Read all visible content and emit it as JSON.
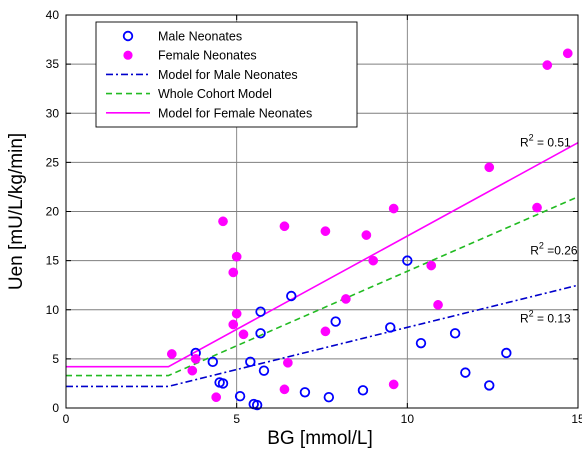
{
  "chart_data": {
    "type": "scatter",
    "xlabel": "BG [mmol/L]",
    "ylabel": "Uen [mU/L/kg/min]",
    "xlim": [
      0,
      15
    ],
    "ylim": [
      0,
      40
    ],
    "x_ticks": [
      "0",
      "5",
      "10",
      "15"
    ],
    "y_ticks": [
      "0",
      "5",
      "10",
      "15",
      "20",
      "25",
      "30",
      "35",
      "40"
    ],
    "grid": true,
    "legend_position": "top-left",
    "series": [
      {
        "name": "Male Neonates",
        "kind": "points",
        "marker": "open-circle",
        "color": "#0000ff",
        "points": [
          [
            3.8,
            5.6
          ],
          [
            4.3,
            4.7
          ],
          [
            4.5,
            2.6
          ],
          [
            4.6,
            2.5
          ],
          [
            5.1,
            1.2
          ],
          [
            5.4,
            4.7
          ],
          [
            5.5,
            0.4
          ],
          [
            5.6,
            0.3
          ],
          [
            5.7,
            9.8
          ],
          [
            5.7,
            7.6
          ],
          [
            5.8,
            3.8
          ],
          [
            6.6,
            11.4
          ],
          [
            7.0,
            1.6
          ],
          [
            7.7,
            1.1
          ],
          [
            7.9,
            8.8
          ],
          [
            8.7,
            1.8
          ],
          [
            9.5,
            8.2
          ],
          [
            10.0,
            15.0
          ],
          [
            10.4,
            6.6
          ],
          [
            11.4,
            7.6
          ],
          [
            11.7,
            3.6
          ],
          [
            12.4,
            2.3
          ],
          [
            12.9,
            5.6
          ]
        ]
      },
      {
        "name": "Female Neonates",
        "kind": "points",
        "marker": "filled-circle",
        "color": "#ff00ff",
        "points": [
          [
            3.1,
            5.5
          ],
          [
            3.7,
            3.8
          ],
          [
            3.8,
            5.0
          ],
          [
            4.4,
            1.1
          ],
          [
            4.6,
            19.0
          ],
          [
            4.9,
            13.8
          ],
          [
            4.9,
            8.5
          ],
          [
            5.0,
            15.4
          ],
          [
            5.0,
            9.6
          ],
          [
            5.2,
            7.5
          ],
          [
            6.4,
            1.9
          ],
          [
            6.4,
            18.5
          ],
          [
            6.5,
            4.6
          ],
          [
            7.6,
            18.0
          ],
          [
            7.6,
            7.8
          ],
          [
            8.2,
            11.1
          ],
          [
            8.8,
            17.6
          ],
          [
            9.0,
            15.0
          ],
          [
            9.6,
            20.3
          ],
          [
            9.6,
            2.4
          ],
          [
            10.7,
            14.5
          ],
          [
            10.9,
            10.5
          ],
          [
            12.4,
            24.5
          ],
          [
            13.8,
            20.4
          ],
          [
            14.1,
            34.9
          ],
          [
            14.7,
            36.1
          ]
        ]
      },
      {
        "name": "Model for Male Neonates",
        "kind": "line",
        "style": "dash-dot",
        "color": "#0000cc",
        "points": [
          [
            0,
            2.2
          ],
          [
            3.0,
            2.2
          ],
          [
            15,
            12.5
          ]
        ]
      },
      {
        "name": "Whole Cohort Model",
        "kind": "line",
        "style": "dashed",
        "color": "#22bb22",
        "points": [
          [
            0,
            3.3
          ],
          [
            3.0,
            3.3
          ],
          [
            15,
            21.5
          ]
        ]
      },
      {
        "name": "Model for Female Neonates",
        "kind": "line",
        "style": "solid",
        "color": "#ff00ff",
        "points": [
          [
            0,
            4.2
          ],
          [
            3.0,
            4.2
          ],
          [
            15,
            27.0
          ]
        ]
      }
    ],
    "annotations": [
      {
        "base": "R",
        "sup": "2",
        "rest": " = 0.51",
        "x": 13.3,
        "y": 26.6
      },
      {
        "base": "R",
        "sup": "2",
        "rest": " =0.26",
        "x": 13.6,
        "y": 15.6
      },
      {
        "base": "R",
        "sup": "2",
        "rest": " = 0.13",
        "x": 13.3,
        "y": 8.7
      }
    ]
  }
}
